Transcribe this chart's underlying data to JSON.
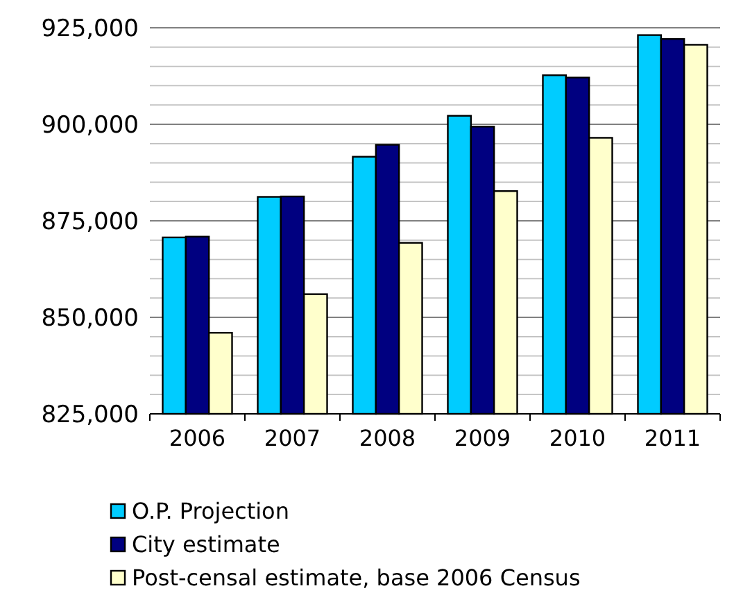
{
  "chart_data": {
    "type": "bar",
    "categories": [
      "2006",
      "2007",
      "2008",
      "2009",
      "2010",
      "2011"
    ],
    "series": [
      {
        "name": "O.P. Projection",
        "color": "#00ccff",
        "values": [
          870700,
          881200,
          891600,
          902200,
          912700,
          923100
        ]
      },
      {
        "name": "City estimate",
        "color": "#000080",
        "values": [
          870900,
          881300,
          894700,
          899400,
          912100,
          922100
        ]
      },
      {
        "name": "Post-censal estimate, base 2006 Census",
        "color": "#ffffcc",
        "values": [
          846000,
          856000,
          869300,
          882700,
          896500,
          920600
        ]
      }
    ],
    "ylim": [
      825000,
      925000
    ],
    "yticks": [
      {
        "value": 825000,
        "label": "825,000"
      },
      {
        "value": 830000,
        "label": null
      },
      {
        "value": 835000,
        "label": null
      },
      {
        "value": 840000,
        "label": null
      },
      {
        "value": 845000,
        "label": null
      },
      {
        "value": 850000,
        "label": "850,000"
      },
      {
        "value": 855000,
        "label": null
      },
      {
        "value": 860000,
        "label": null
      },
      {
        "value": 865000,
        "label": null
      },
      {
        "value": 870000,
        "label": null
      },
      {
        "value": 875000,
        "label": "875,000"
      },
      {
        "value": 880000,
        "label": null
      },
      {
        "value": 885000,
        "label": null
      },
      {
        "value": 890000,
        "label": null
      },
      {
        "value": 895000,
        "label": null
      },
      {
        "value": 900000,
        "label": "900,000"
      },
      {
        "value": 905000,
        "label": null
      },
      {
        "value": 910000,
        "label": null
      },
      {
        "value": 915000,
        "label": null
      },
      {
        "value": 920000,
        "label": null
      },
      {
        "value": 925000,
        "label": "925,000"
      }
    ],
    "grid": "y",
    "legend": "bottom"
  }
}
